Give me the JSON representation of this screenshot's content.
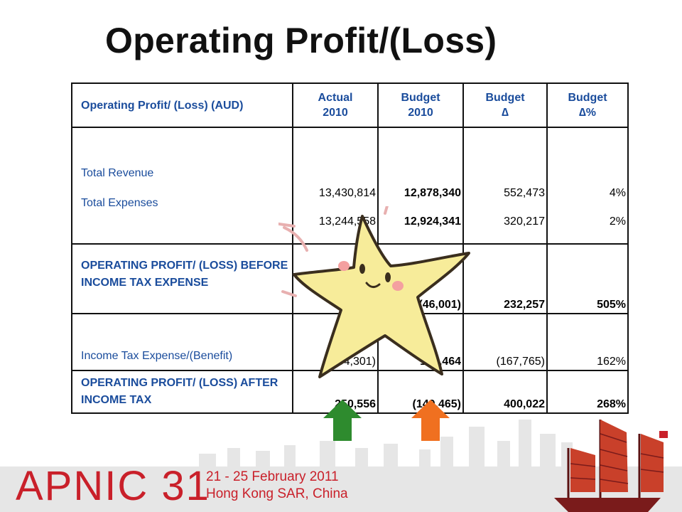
{
  "slide": {
    "title": "Operating Profit/(Loss)"
  },
  "table": {
    "headers": {
      "label": "Operating Profit/ (Loss) (AUD)",
      "actual_line1": "Actual",
      "actual_line2": "2010",
      "budget_line1": "Budget",
      "budget_line2": "2010",
      "delta_line1": "Budget",
      "delta_line2": "∆",
      "deltapct_line1": "Budget",
      "deltapct_line2": "∆%"
    },
    "rows": [
      {
        "label": "Total Revenue",
        "actual": "13,430,814",
        "budget": "12,878,340",
        "delta": "552,473",
        "delta_pct": "4%"
      },
      {
        "label": "Total Expenses",
        "actual": "13,244,558",
        "budget": "12,924,341",
        "delta": "320,217",
        "delta_pct": "2%"
      },
      {
        "label": "OPERATING PROFIT/ (LOSS) BEFORE INCOME TAX EXPENSE",
        "actual": "",
        "budget": "(46,001)",
        "delta": "232,257",
        "delta_pct": "505%"
      },
      {
        "label": "Income Tax Expense/(Benefit)",
        "actual": "(64,301)",
        "budget": "103,464",
        "delta": "(167,765)",
        "delta_pct": "162%"
      },
      {
        "label": "OPERATING PROFIT/ (LOSS) AFTER INCOME TAX",
        "actual": "250,556",
        "budget": "(149,465)",
        "delta": "400,022",
        "delta_pct": "268%"
      }
    ]
  },
  "footer": {
    "logo": "APNIC 31",
    "dates": "21 - 25 February 2011",
    "location": "Hong Kong SAR, China"
  },
  "colors": {
    "label_blue": "#1a4c9c",
    "star_yellow": "#f7ec9a",
    "arrow_green": "#2e8b2e",
    "arrow_orange": "#f07020",
    "brand_red": "#c9202a"
  },
  "icons": [
    "star-mascot",
    "green-up-arrow",
    "orange-up-arrow",
    "junk-boat",
    "city-skyline"
  ]
}
